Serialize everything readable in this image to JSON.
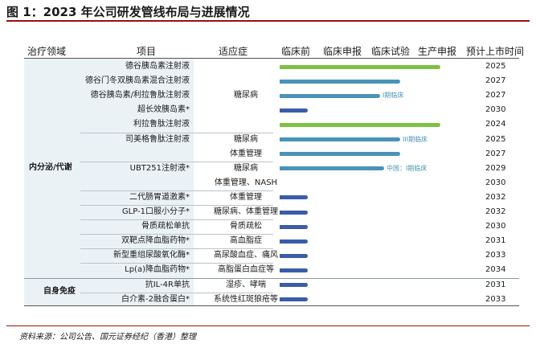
{
  "figure_title": "图 1：2023 年公司研发管线布局与进展情况",
  "headers": {
    "domain": "治疗领域",
    "project": "项目",
    "indication": "适应症",
    "stages": [
      "临床前",
      "临床申报",
      "临床试验",
      "生产申报"
    ],
    "launch": "预计上市时间"
  },
  "domains": [
    {
      "label": "内分泌/代谢"
    },
    {
      "label": "自身免疫"
    }
  ],
  "rows": [
    {
      "project": "德谷胰岛素注射液",
      "indication": "",
      "stage": 4,
      "launch": "2025",
      "note": "",
      "color": "green"
    },
    {
      "project": "德谷门冬双胰岛素混合注射液",
      "indication": "",
      "stage": 3,
      "launch": "2027",
      "note": "",
      "color": "teal"
    },
    {
      "project": "德谷胰岛素/利拉鲁肽注射液",
      "indication": "糖尿病",
      "stage": 2.5,
      "launch": "2027",
      "note": "I期临床",
      "color": "teal"
    },
    {
      "project": "超长效胰岛素*",
      "indication": "",
      "stage": 0.7,
      "launch": "2030",
      "note": "",
      "color": "blue"
    },
    {
      "project": "利拉鲁肽注射液",
      "indication": "",
      "stage": 4,
      "launch": "2024",
      "note": "",
      "color": "green"
    },
    {
      "project": "司美格鲁肽注射液",
      "indication": "糖尿病",
      "stage": 3.0,
      "launch": "2025",
      "note": "III期临床",
      "color": "teal"
    },
    {
      "project": "",
      "indication": "体重管理",
      "stage": 3.0,
      "launch": "2027",
      "note": "",
      "color": "teal"
    },
    {
      "project": "UBT251注射液*",
      "indication": "糖尿病",
      "stage": 2.6,
      "launch": "2029",
      "note": "中国：I期临床",
      "color": "teal"
    },
    {
      "project": "",
      "indication": "体重管理、NASH",
      "stage": 0,
      "launch": "2030",
      "note": "",
      "color": "teal"
    },
    {
      "project": "二代肠胃道激素*",
      "indication": "体重管理",
      "stage": 0.7,
      "launch": "2032",
      "note": "",
      "color": "blue"
    },
    {
      "project": "GLP-1口服小分子*",
      "indication": "糖尿病、体重管理",
      "stage": 0.7,
      "launch": "2032",
      "note": "",
      "color": "blue"
    },
    {
      "project": "骨质疏松单抗",
      "indication": "骨质疏松",
      "stage": 0.7,
      "launch": "2030",
      "note": "",
      "color": "blue"
    },
    {
      "project": "双靶点降血脂药物*",
      "indication": "高血脂症",
      "stage": 0.7,
      "launch": "2031",
      "note": "",
      "color": "blue"
    },
    {
      "project": "新型重组尿酸氧化酶*",
      "indication": "高尿酸血症、痛风",
      "stage": 0.7,
      "launch": "2033",
      "note": "",
      "color": "blue"
    },
    {
      "project": "Lp(a)降血脂药物*",
      "indication": "高脂蛋白血症等",
      "stage": 0.7,
      "launch": "2034",
      "note": "",
      "color": "blue"
    },
    {
      "project": "抗IL-4R单抗",
      "indication": "湿疹、哮喘",
      "stage": 0.7,
      "launch": "2031",
      "note": "",
      "color": "blue"
    },
    {
      "project": "白介素-2融合蛋白*",
      "indication": "系统性红斑狼疮等",
      "stage": 0.7,
      "launch": "2033",
      "note": "",
      "color": "blue"
    }
  ],
  "colors": {
    "green": "#7dc142",
    "teal": "#4a93b8",
    "blue": "#3b5ca8"
  },
  "source": "资料来源：公司公告、国元证券经纪（香港）整理"
}
